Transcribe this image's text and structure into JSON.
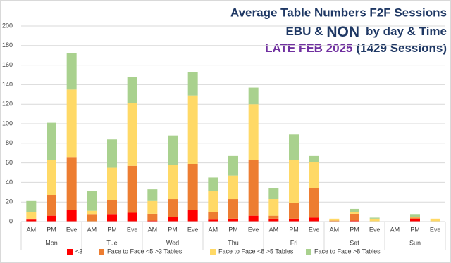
{
  "chart_data": {
    "type": "stacked_bar",
    "title": "Average Table Numbers F2F Sessions",
    "subtitle": [
      "EBU &",
      "NON",
      "by day & Time"
    ],
    "subtitle2": [
      "LATE FEB 2025",
      "(1429 Sessions)"
    ],
    "categories": [
      "AM",
      "PM",
      "Eve",
      "AM",
      "PM",
      "Eve",
      "AM",
      "PM",
      "Eve",
      "AM",
      "PM",
      "Eve",
      "AM",
      "PM",
      "Eve",
      "AM",
      "PM",
      "Eve",
      "AM",
      "PM",
      "Eve"
    ],
    "groups": [
      "Mon",
      "Tue",
      "Wed",
      "Thu",
      "Fri",
      "Sat",
      "Sun"
    ],
    "series": [
      {
        "name": "<3",
        "color": "#ff0000",
        "values": [
          2,
          6,
          12,
          0,
          7,
          9,
          1,
          5,
          12,
          2,
          3,
          6,
          3,
          3,
          4,
          0,
          1,
          0,
          0,
          3,
          0
        ]
      },
      {
        "name": "Face to Face <5 >3 Tables",
        "color": "#ed7d31",
        "values": [
          1,
          21,
          54,
          7,
          15,
          48,
          7,
          18,
          47,
          8,
          20,
          57,
          3,
          16,
          30,
          1,
          7,
          0,
          0,
          1,
          0
        ]
      },
      {
        "name": "Face to Face <8 >5 Tables",
        "color": "#ffd966",
        "values": [
          7,
          36,
          69,
          4,
          33,
          64,
          13,
          35,
          70,
          21,
          24,
          57,
          17,
          44,
          27,
          2,
          2,
          3,
          0,
          1,
          3
        ]
      },
      {
        "name": "Face to Face >8 Tables",
        "color": "#a9d18e",
        "values": [
          11,
          38,
          37,
          20,
          29,
          27,
          12,
          30,
          24,
          14,
          20,
          17,
          11,
          26,
          6,
          0,
          3,
          1,
          0,
          2,
          0
        ]
      }
    ],
    "ylim": [
      0,
      200
    ],
    "yticks": [
      0,
      20,
      40,
      60,
      80,
      100,
      120,
      140,
      160,
      180,
      200
    ],
    "grid": true,
    "legend": "bottom"
  }
}
